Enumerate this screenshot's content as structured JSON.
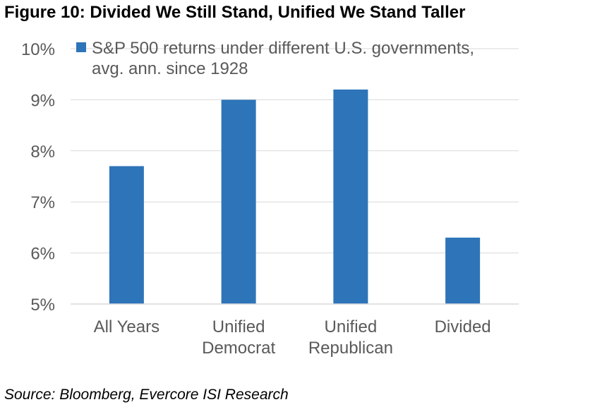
{
  "figure_title": "Figure 10: Divided We Still Stand, Unified We Stand Taller",
  "source": "Source: Bloomberg, Evercore ISI Research",
  "colors": {
    "bar": "#2e74b8",
    "grid": "#d9d9d9",
    "axis_text": "#595959"
  },
  "chart_data": {
    "type": "bar",
    "title": "",
    "xlabel": "",
    "ylabel": "",
    "categories": [
      [
        "All Years"
      ],
      [
        "Unified",
        "Democrat"
      ],
      [
        "Unified",
        "Republican"
      ],
      [
        "Divided"
      ]
    ],
    "series": [
      {
        "name": "S&P 500 returns under different U.S. governments, avg. ann. since 1928",
        "legend_lines": [
          "S&P 500 returns under different U.S. governments,",
          "avg. ann. since 1928"
        ],
        "values": [
          7.7,
          9.0,
          9.2,
          6.3
        ]
      }
    ],
    "yticks": [
      "5%",
      "6%",
      "7%",
      "8%",
      "9%",
      "10%"
    ],
    "ylim": [
      5,
      10
    ],
    "unit": "%",
    "grid": true,
    "legend_position": "top-right"
  }
}
